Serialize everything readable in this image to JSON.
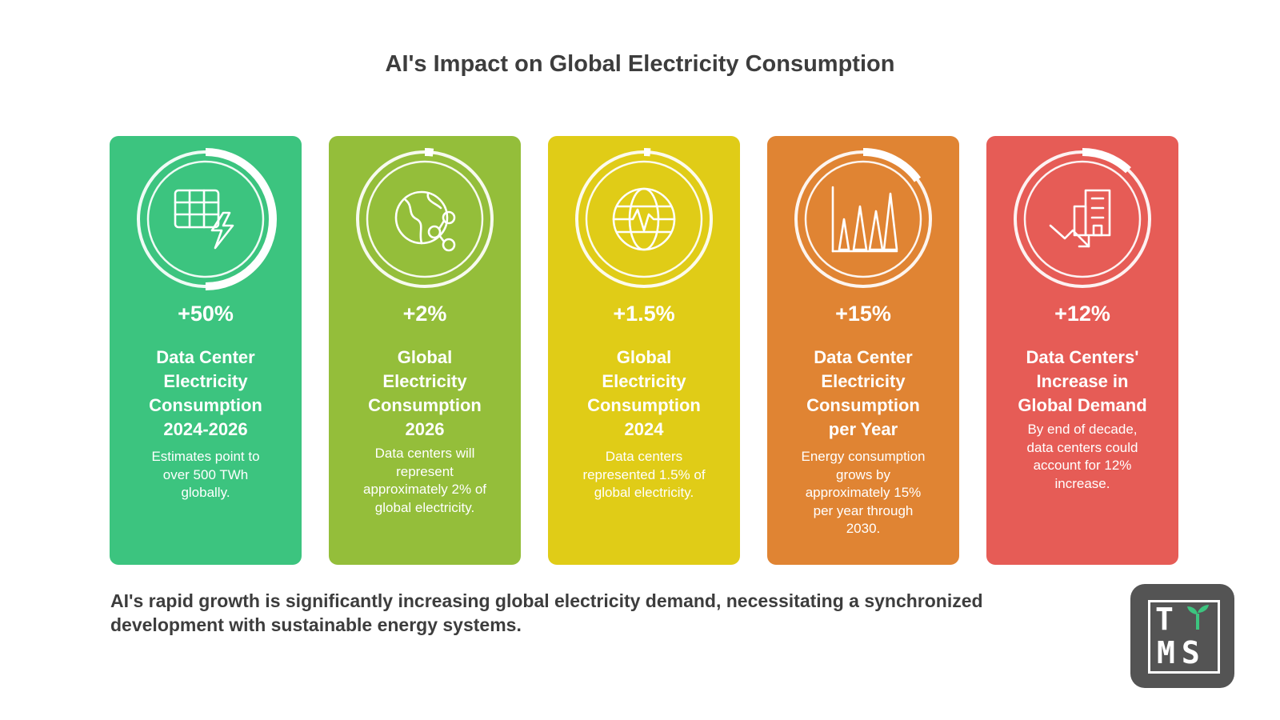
{
  "title": "AI's Impact on Global Electricity Consumption",
  "cards": [
    {
      "color": "#3cc47f",
      "icon": "spreadsheet-lightning-icon",
      "ring_progress": 0.5,
      "percent": "+50%",
      "heading_lines": [
        "Data Center",
        "Electricity",
        "Consumption",
        "2024-2026"
      ],
      "desc_lines": [
        "Estimates point to",
        "over 500 TWh",
        "globally."
      ]
    },
    {
      "color": "#94be3a",
      "icon": "globe-share-icon",
      "ring_progress": 0.02,
      "percent": "+2%",
      "heading_lines": [
        "Global",
        "Electricity",
        "Consumption",
        "2026"
      ],
      "desc_lines": [
        "Data centers will",
        "represent",
        "approximately 2% of",
        "global electricity."
      ]
    },
    {
      "color": "#e0cc17",
      "icon": "globe-pulse-icon",
      "ring_progress": 0.015,
      "percent": "+1.5%",
      "heading_lines": [
        "Global",
        "Electricity",
        "Consumption",
        "2024"
      ],
      "desc_lines": [
        "Data centers",
        "represented 1.5% of",
        "global electricity."
      ]
    },
    {
      "color": "#e08433",
      "icon": "bar-chart-icon",
      "ring_progress": 0.15,
      "percent": "+15%",
      "heading_lines": [
        "Data Center",
        "Electricity",
        "Consumption",
        "per Year"
      ],
      "desc_lines": [
        "Energy consumption",
        "grows by",
        "approximately 15%",
        "per year through",
        "2030."
      ]
    },
    {
      "color": "#e65c56",
      "icon": "building-trend-icon",
      "ring_progress": 0.12,
      "percent": "+12%",
      "heading_lines": [
        "Data Centers'",
        "Increase in",
        "Global Demand"
      ],
      "desc_lines": [
        "By end of decade,",
        "data centers could",
        "account for 12%",
        "increase."
      ]
    }
  ],
  "footer_lines": [
    "AI's rapid growth is significantly increasing global electricity demand, necessitating a synchronized",
    "development with sustainable energy systems."
  ],
  "logo": {
    "line1": "T",
    "line2": "MS",
    "sprout_color": "#3cc47f"
  }
}
